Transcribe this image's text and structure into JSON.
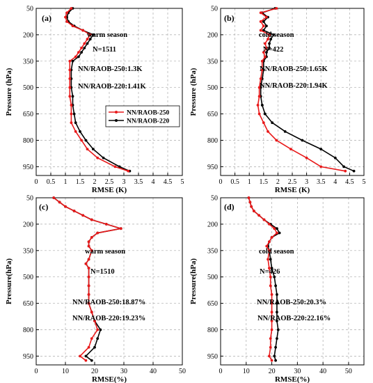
{
  "chart_data": [
    {
      "type": "line",
      "panel_label": "(a)",
      "xlabel": "RMSE (K)",
      "ylabel": "Pressure (hPa)",
      "xlim": [
        0,
        5
      ],
      "ylim": [
        50,
        1000
      ],
      "y_inverted": true,
      "x_ticks": [
        "0",
        "0.5",
        "1",
        "1.5",
        "2",
        "2.5",
        "3",
        "3.5",
        "4",
        "4.5",
        "5"
      ],
      "y_ticks": [
        "50",
        "200",
        "350",
        "500",
        "650",
        "800",
        "950"
      ],
      "grid": true,
      "annotations": [
        "warm season",
        "N=1511",
        "NN/RAOB-250:1.3K",
        "NN/RAOB-220:1.41K"
      ],
      "legend": {
        "placement": "center-right",
        "entries": [
          "NN/RAOB-250",
          "NN/RAOB-220"
        ]
      },
      "series": [
        {
          "name": "NN/RAOB-250",
          "color": "#e8191a",
          "points": [
            [
              1.2,
              50
            ],
            [
              1.05,
              75
            ],
            [
              1.0,
              100
            ],
            [
              1.05,
              125
            ],
            [
              1.25,
              150
            ],
            [
              1.6,
              175
            ],
            [
              1.85,
              200
            ],
            [
              1.75,
              225
            ],
            [
              1.65,
              250
            ],
            [
              1.55,
              275
            ],
            [
              1.45,
              300
            ],
            [
              1.35,
              325
            ],
            [
              1.15,
              350
            ],
            [
              1.15,
              400
            ],
            [
              1.15,
              450
            ],
            [
              1.15,
              500
            ],
            [
              1.15,
              550
            ],
            [
              1.2,
              600
            ],
            [
              1.2,
              650
            ],
            [
              1.2,
              700
            ],
            [
              1.35,
              750
            ],
            [
              1.55,
              800
            ],
            [
              1.75,
              850
            ],
            [
              2.1,
              900
            ],
            [
              2.7,
              950
            ],
            [
              3.15,
              975
            ]
          ]
        },
        {
          "name": "NN/RAOB-220",
          "color": "#000000",
          "points": [
            [
              1.25,
              50
            ],
            [
              1.1,
              75
            ],
            [
              1.05,
              100
            ],
            [
              1.1,
              125
            ],
            [
              1.3,
              150
            ],
            [
              1.6,
              175
            ],
            [
              1.95,
              200
            ],
            [
              1.85,
              225
            ],
            [
              1.75,
              250
            ],
            [
              1.65,
              275
            ],
            [
              1.55,
              300
            ],
            [
              1.45,
              325
            ],
            [
              1.25,
              350
            ],
            [
              1.2,
              400
            ],
            [
              1.2,
              450
            ],
            [
              1.2,
              500
            ],
            [
              1.25,
              550
            ],
            [
              1.25,
              600
            ],
            [
              1.3,
              650
            ],
            [
              1.35,
              700
            ],
            [
              1.5,
              750
            ],
            [
              1.7,
              800
            ],
            [
              1.95,
              850
            ],
            [
              2.3,
              900
            ],
            [
              2.85,
              950
            ],
            [
              3.2,
              975
            ]
          ]
        }
      ]
    },
    {
      "type": "line",
      "panel_label": "(b)",
      "xlabel": "RMSE (K)",
      "ylabel": "Pressure (hPa)",
      "xlim": [
        0,
        5
      ],
      "ylim": [
        50,
        1000
      ],
      "y_inverted": true,
      "x_ticks": [
        "0",
        "0.5",
        "1",
        "1.5",
        "2",
        "2.5",
        "3",
        "3.5",
        "4",
        "4.5",
        "5"
      ],
      "y_ticks": [
        "50",
        "200",
        "350",
        "500",
        "650",
        "800",
        "950"
      ],
      "grid": true,
      "annotations": [
        "cold season",
        "N=422",
        "NN/RAOB-250:1.65K",
        "NN/RAOB-220:1.94K"
      ],
      "series": [
        {
          "name": "NN/RAOB-250",
          "color": "#e8191a",
          "points": [
            [
              1.95,
              50
            ],
            [
              1.4,
              75
            ],
            [
              1.6,
              100
            ],
            [
              1.4,
              125
            ],
            [
              1.5,
              150
            ],
            [
              1.4,
              175
            ],
            [
              1.7,
              200
            ],
            [
              1.65,
              225
            ],
            [
              1.55,
              250
            ],
            [
              1.6,
              275
            ],
            [
              1.5,
              300
            ],
            [
              1.55,
              325
            ],
            [
              1.45,
              350
            ],
            [
              1.45,
              400
            ],
            [
              1.4,
              450
            ],
            [
              1.35,
              500
            ],
            [
              1.35,
              550
            ],
            [
              1.3,
              600
            ],
            [
              1.35,
              650
            ],
            [
              1.5,
              700
            ],
            [
              1.65,
              750
            ],
            [
              1.95,
              800
            ],
            [
              2.45,
              850
            ],
            [
              3.0,
              900
            ],
            [
              3.5,
              950
            ],
            [
              4.35,
              975
            ]
          ]
        },
        {
          "name": "NN/RAOB-220",
          "color": "#000000",
          "points": [
            [
              1.9,
              50
            ],
            [
              1.45,
              75
            ],
            [
              1.65,
              100
            ],
            [
              1.5,
              125
            ],
            [
              1.6,
              150
            ],
            [
              1.5,
              175
            ],
            [
              1.85,
              200
            ],
            [
              1.75,
              225
            ],
            [
              1.7,
              250
            ],
            [
              1.7,
              275
            ],
            [
              1.6,
              300
            ],
            [
              1.6,
              325
            ],
            [
              1.5,
              350
            ],
            [
              1.5,
              400
            ],
            [
              1.45,
              450
            ],
            [
              1.4,
              500
            ],
            [
              1.4,
              550
            ],
            [
              1.45,
              600
            ],
            [
              1.55,
              650
            ],
            [
              1.8,
              700
            ],
            [
              2.25,
              750
            ],
            [
              2.85,
              800
            ],
            [
              3.5,
              850
            ],
            [
              4.0,
              900
            ],
            [
              4.3,
              950
            ],
            [
              4.65,
              975
            ]
          ]
        }
      ]
    },
    {
      "type": "line",
      "panel_label": "(c)",
      "xlabel": "RMSE(%)",
      "ylabel": "Pressure(hPa)",
      "xlim": [
        0,
        50
      ],
      "ylim": [
        50,
        1000
      ],
      "y_inverted": true,
      "x_ticks": [
        "0",
        "10",
        "20",
        "30",
        "40",
        "50"
      ],
      "y_ticks": [
        "50",
        "200",
        "350",
        "500",
        "650",
        "800",
        "950"
      ],
      "grid": true,
      "annotations": [
        "warm season",
        "N=1510",
        "NN/RAOB-250:18.87%",
        "NN/RAOB-220:19.23%"
      ],
      "series": [
        {
          "name": "NN/RAOB-250",
          "color": "#e8191a",
          "points": [
            [
              6,
              50
            ],
            [
              8,
              75
            ],
            [
              10,
              100
            ],
            [
              13,
              125
            ],
            [
              16,
              150
            ],
            [
              19,
              175
            ],
            [
              24,
              200
            ],
            [
              29,
              225
            ],
            [
              21,
              250
            ],
            [
              19,
              275
            ],
            [
              18,
              300
            ],
            [
              18,
              325
            ],
            [
              19,
              350
            ],
            [
              18,
              400
            ],
            [
              17,
              425
            ],
            [
              18,
              450
            ],
            [
              18,
              500
            ],
            [
              18,
              550
            ],
            [
              18,
              600
            ],
            [
              18,
              650
            ],
            [
              19,
              700
            ],
            [
              20,
              750
            ],
            [
              21,
              800
            ],
            [
              19,
              850
            ],
            [
              18,
              900
            ],
            [
              15,
              950
            ],
            [
              17,
              975
            ]
          ]
        },
        {
          "name": "NN/RAOB-220",
          "color": "#000000",
          "points": [
            [
              6,
              50
            ],
            [
              8,
              75
            ],
            [
              10,
              100
            ],
            [
              13,
              125
            ],
            [
              16,
              150
            ],
            [
              19,
              175
            ],
            [
              24,
              200
            ],
            [
              29,
              225
            ],
            [
              21,
              250
            ],
            [
              19,
              275
            ],
            [
              18,
              300
            ],
            [
              18,
              325
            ],
            [
              19,
              350
            ],
            [
              18,
              400
            ],
            [
              17,
              425
            ],
            [
              18,
              450
            ],
            [
              18,
              500
            ],
            [
              18,
              550
            ],
            [
              18,
              600
            ],
            [
              18,
              650
            ],
            [
              19,
              700
            ],
            [
              20,
              750
            ],
            [
              22,
              800
            ],
            [
              21,
              850
            ],
            [
              20,
              900
            ],
            [
              17,
              950
            ],
            [
              19,
              975
            ]
          ]
        }
      ]
    },
    {
      "type": "line",
      "panel_label": "(d)",
      "xlabel": "RMSE(%)",
      "ylabel": "Pressure(hPa)",
      "xlim": [
        0,
        56
      ],
      "ylim": [
        50,
        1000
      ],
      "y_inverted": true,
      "x_ticks": [
        "0",
        "10",
        "20",
        "30",
        "40",
        "50"
      ],
      "y_ticks": [
        "50",
        "200",
        "350",
        "500",
        "650",
        "800",
        "950"
      ],
      "grid": true,
      "annotations": [
        "cold season",
        "N=426",
        "NN/RAOB-250:20.3%",
        "NN/RAOB-220:22.16%"
      ],
      "series": [
        {
          "name": "NN/RAOB-250",
          "color": "#e8191a",
          "points": [
            [
              11,
              50
            ],
            [
              11.5,
              75
            ],
            [
              12,
              100
            ],
            [
              13,
              125
            ],
            [
              15,
              150
            ],
            [
              17,
              175
            ],
            [
              19,
              200
            ],
            [
              21,
              225
            ],
            [
              22,
              250
            ],
            [
              20,
              275
            ],
            [
              19,
              300
            ],
            [
              18,
              325
            ],
            [
              19,
              350
            ],
            [
              18.5,
              400
            ],
            [
              19,
              450
            ],
            [
              19.5,
              500
            ],
            [
              19.5,
              550
            ],
            [
              20,
              600
            ],
            [
              20,
              650
            ],
            [
              20,
              700
            ],
            [
              20,
              750
            ],
            [
              20,
              800
            ],
            [
              19.5,
              850
            ],
            [
              19.5,
              900
            ],
            [
              19,
              950
            ],
            [
              20,
              975
            ]
          ]
        },
        {
          "name": "NN/RAOB-220",
          "color": "#000000",
          "points": [
            [
              11,
              50
            ],
            [
              11.5,
              75
            ],
            [
              12,
              100
            ],
            [
              13,
              125
            ],
            [
              15,
              150
            ],
            [
              17,
              175
            ],
            [
              19.5,
              200
            ],
            [
              22,
              225
            ],
            [
              23,
              250
            ],
            [
              20,
              275
            ],
            [
              19,
              300
            ],
            [
              18.5,
              325
            ],
            [
              19,
              350
            ],
            [
              19.5,
              400
            ],
            [
              20,
              450
            ],
            [
              21,
              500
            ],
            [
              21.5,
              550
            ],
            [
              22,
              600
            ],
            [
              22,
              650
            ],
            [
              22,
              700
            ],
            [
              22,
              750
            ],
            [
              22.5,
              800
            ],
            [
              22,
              850
            ],
            [
              21.5,
              900
            ],
            [
              21,
              950
            ],
            [
              21.5,
              975
            ]
          ]
        }
      ]
    }
  ]
}
